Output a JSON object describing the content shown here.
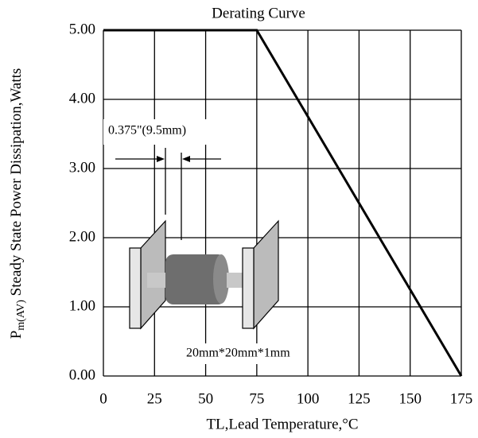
{
  "chart_data": {
    "type": "line",
    "title": "Derating Curve",
    "x_label": "TL,Lead Temperature,°C",
    "y_label": {
      "main": "P",
      "subscript": "m(AV)",
      "rest": " Steady State Power Dissipation,Watts"
    },
    "x": [
      0,
      75,
      175
    ],
    "series": [
      {
        "color": "#000000",
        "values": [
          5,
          5,
          0
        ]
      }
    ],
    "xlim": [
      0,
      175
    ],
    "xticks": [
      0,
      25,
      50,
      75,
      100,
      125,
      150,
      175
    ],
    "ylim": [
      0,
      5
    ],
    "yticks": [
      {
        "value": 0,
        "label": "0.00"
      },
      {
        "value": 1,
        "label": "1.00"
      },
      {
        "value": 2,
        "label": "2.00"
      },
      {
        "value": 3,
        "label": "3.00"
      },
      {
        "value": 4,
        "label": "4.00"
      },
      {
        "value": 5,
        "label": "5.00"
      }
    ],
    "grid": true,
    "annotations": [
      "0.375\"(9.5mm)",
      "20mm*20mm*1mm"
    ]
  }
}
